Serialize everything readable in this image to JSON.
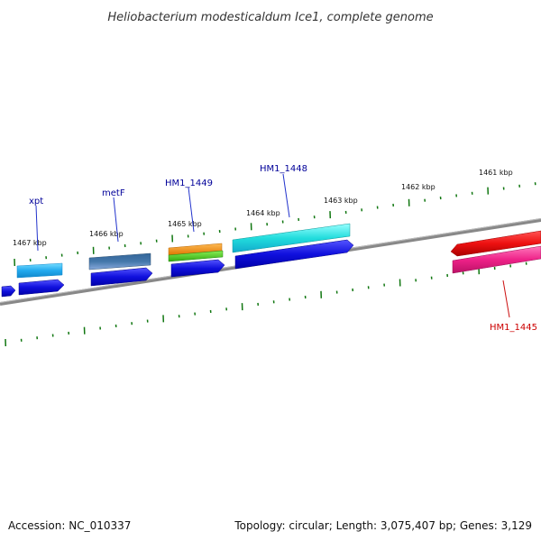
{
  "title": "Heliobacterium modesticaldum Ice1, complete genome",
  "footer": {
    "accession": "Accession: NC_010337",
    "summary": "Topology: circular; Length: 3,075,407 bp; Genes: 3,129"
  },
  "kbp_labels": [
    "1467 kbp",
    "1466 kbp",
    "1465 kbp",
    "1464 kbp",
    "1463 kbp",
    "1462 kbp",
    "1461 kbp"
  ],
  "genes": [
    {
      "name": "xpt",
      "color": "#000099"
    },
    {
      "name": "metF",
      "color": "#000099"
    },
    {
      "name": "HM1_1449",
      "color": "#000099"
    },
    {
      "name": "HM1_1448",
      "color": "#000099"
    },
    {
      "name": "HM1_1445",
      "color": "#cc0000"
    }
  ],
  "colors": {
    "backbone": "#888888",
    "tick": "#117711",
    "cds_blue": "#1010dd",
    "cyan": "#22dddd",
    "steel_blue": "#4477aa",
    "orange": "#ee8811",
    "green": "#44cc22",
    "red": "#ee1111",
    "pink": "#ee2288"
  }
}
